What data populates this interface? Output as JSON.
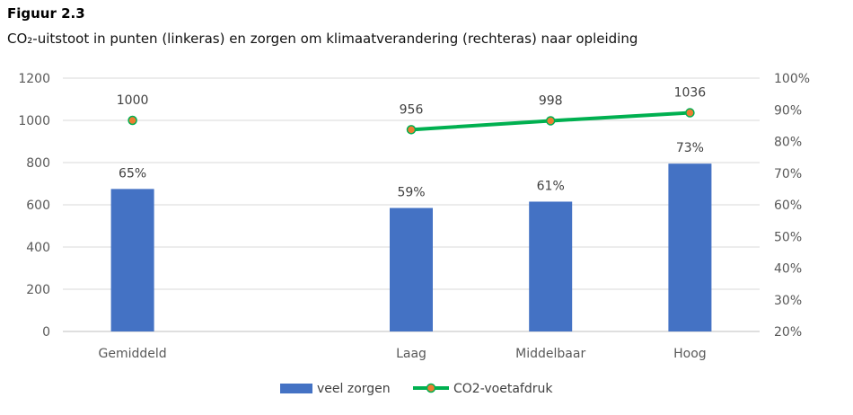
{
  "figure_label": "Figuur 2.3",
  "chart_data": {
    "type": "bar+line",
    "title": "CO₂-uitstoot in punten (linkeras) en zorgen om klimaatverandering (rechteras) naar opleiding",
    "categories": [
      "Gemiddeld",
      "",
      "Laag",
      "Middelbaar",
      "Hoog"
    ],
    "series": [
      {
        "name": "veel zorgen",
        "type": "bar",
        "axis": "right",
        "color": "#4472C4",
        "values": [
          65,
          null,
          59,
          61,
          73
        ],
        "labels": [
          "65%",
          null,
          "59%",
          "61%",
          "73%"
        ]
      },
      {
        "name": "CO2-voetafdruk",
        "type": "line",
        "axis": "left",
        "color": "#00B050",
        "marker_color": "#ED7D31",
        "values": [
          1000,
          null,
          956,
          998,
          1036
        ],
        "labels": [
          "1000",
          null,
          "956",
          "998",
          "1036"
        ]
      }
    ],
    "left_axis": {
      "ylim": [
        0,
        1200
      ],
      "ticks": [
        "0",
        "200",
        "400",
        "600",
        "800",
        "1000",
        "1200"
      ]
    },
    "right_axis": {
      "ylim": [
        20,
        100
      ],
      "ticks": [
        "20%",
        "30%",
        "40%",
        "50%",
        "60%",
        "70%",
        "80%",
        "90%",
        "100%"
      ]
    },
    "grid": true,
    "legend": "bottom"
  }
}
